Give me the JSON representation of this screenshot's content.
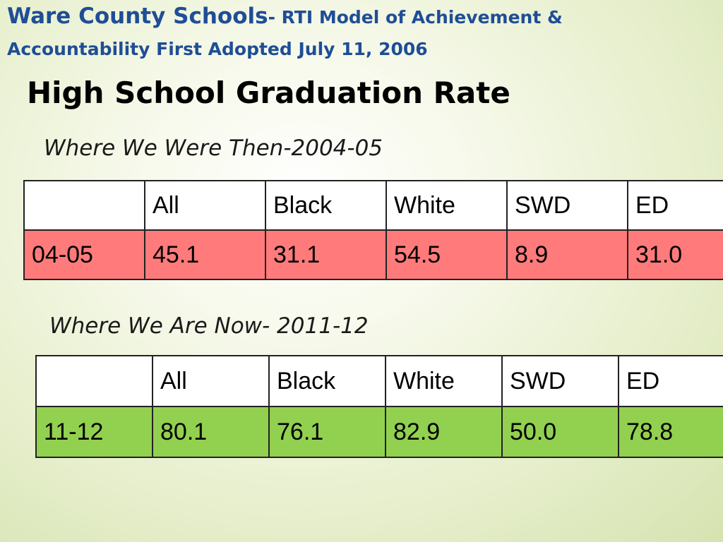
{
  "header": {
    "line1_big": "Ware County Schools",
    "line1_small": "- RTI Model of Achievement &",
    "line2": "Accountability First Adopted July 11, 2006"
  },
  "title": "High School Graduation Rate",
  "sections": [
    {
      "subtitle": "Where We Were Then-2004-05",
      "columns": [
        "",
        "All",
        "Black",
        "White",
        "SWD",
        "ED"
      ],
      "row": [
        "04-05",
        "45.1",
        "31.1",
        "54.5",
        "8.9",
        "31.0"
      ],
      "row_color": "#ff7b7b"
    },
    {
      "subtitle": "Where We Are Now- 2011-12",
      "columns": [
        "",
        "All",
        "Black",
        "White",
        "SWD",
        "ED"
      ],
      "row": [
        "11-12",
        "80.1",
        "76.1",
        "82.9",
        "50.0",
        "78.8"
      ],
      "row_color": "#92d050"
    }
  ],
  "colors": {
    "header_text": "#1f4e96",
    "background": "#e7efcd"
  }
}
